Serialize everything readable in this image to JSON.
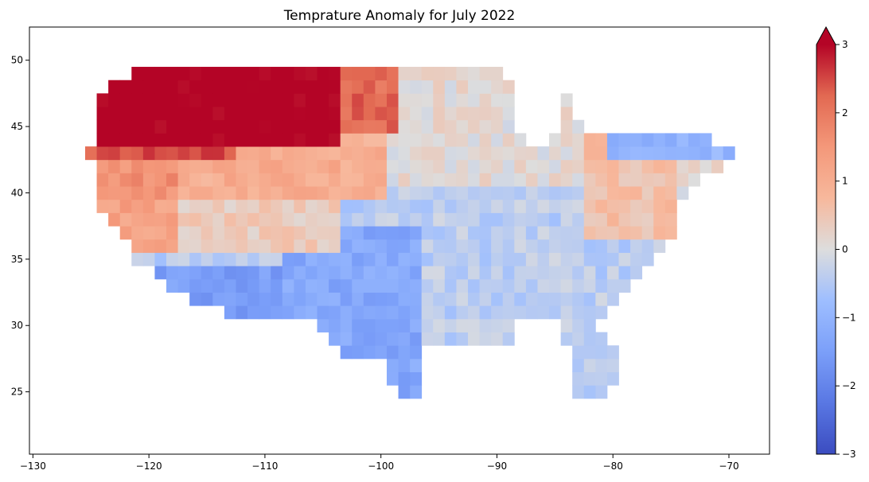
{
  "chart_data": {
    "type": "heatmap",
    "title": "Temprature Anomaly for July 2022",
    "xlabel": "",
    "ylabel": "",
    "xlim": [
      -130.3,
      -66.5
    ],
    "ylim": [
      20.3,
      52.5
    ],
    "x_ticks": [
      -130,
      -120,
      -110,
      -100,
      -90,
      -80,
      -70
    ],
    "x_tick_labels": [
      "−130",
      "−120",
      "−110",
      "−100",
      "−90",
      "−80",
      "−70"
    ],
    "y_ticks": [
      25,
      30,
      35,
      40,
      45,
      50
    ],
    "y_tick_labels": [
      "25",
      "30",
      "35",
      "40",
      "45",
      "50"
    ],
    "grid": false,
    "colormap": "coolwarm",
    "colorbar": {
      "min": -3,
      "max": 3,
      "extend": "max",
      "ticks": [
        -3,
        -2,
        -1,
        0,
        1,
        2,
        3
      ],
      "tick_labels": [
        "−3",
        "−2",
        "−1",
        "0",
        "1",
        "2",
        "3"
      ]
    },
    "cell_size_deg": 1,
    "cells_note": "values in degrees anomaly, x = cell center longitude, y = cell center latitude",
    "cells": []
  },
  "colors": {
    "cold": "#3b4cc0",
    "neutral": "#dddddd",
    "warm": "#b40426"
  }
}
